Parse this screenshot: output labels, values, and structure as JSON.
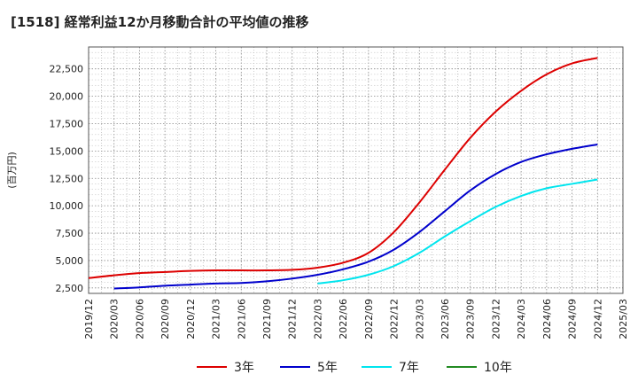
{
  "chart_data": {
    "type": "line",
    "title": "[1518]  経常利益12か月移動合計の平均値の推移",
    "ylabel": "(百万円)",
    "xlabel": "",
    "ylim": [
      2000,
      24500
    ],
    "yticks": [
      2500,
      5000,
      7500,
      10000,
      12500,
      15000,
      17500,
      20000,
      22500
    ],
    "ytick_labels": [
      "2,500",
      "5,000",
      "7,500",
      "10,000",
      "12,500",
      "15,000",
      "17,500",
      "20,000",
      "22,500"
    ],
    "xticks": [
      "2019/12",
      "2020/03",
      "2020/06",
      "2020/09",
      "2020/12",
      "2021/03",
      "2021/06",
      "2021/09",
      "2021/12",
      "2022/03",
      "2022/06",
      "2022/09",
      "2022/12",
      "2023/03",
      "2023/06",
      "2023/09",
      "2023/12",
      "2024/03",
      "2024/06",
      "2024/09",
      "2024/12",
      "2025/03"
    ],
    "grid": true,
    "legend_position": "bottom",
    "series": [
      {
        "name": "3年",
        "color": "#dd0000",
        "x": [
          "2019/12",
          "2020/03",
          "2020/06",
          "2020/09",
          "2020/12",
          "2021/03",
          "2021/06",
          "2021/09",
          "2021/12",
          "2022/03",
          "2022/06",
          "2022/09",
          "2022/12",
          "2023/03",
          "2023/06",
          "2023/09",
          "2023/12",
          "2024/03",
          "2024/06",
          "2024/09",
          "2024/12"
        ],
        "values": [
          3400,
          3650,
          3850,
          3950,
          4050,
          4100,
          4100,
          4100,
          4150,
          4350,
          4800,
          5700,
          7600,
          10300,
          13300,
          16200,
          18600,
          20500,
          22000,
          23000,
          23500
        ]
      },
      {
        "name": "5年",
        "color": "#0000cc",
        "x": [
          "2020/03",
          "2020/06",
          "2020/09",
          "2020/12",
          "2021/03",
          "2021/06",
          "2021/09",
          "2021/12",
          "2022/03",
          "2022/06",
          "2022/09",
          "2022/12",
          "2023/03",
          "2023/06",
          "2023/09",
          "2023/12",
          "2024/03",
          "2024/06",
          "2024/09",
          "2024/12"
        ],
        "values": [
          2450,
          2550,
          2700,
          2800,
          2900,
          2950,
          3100,
          3350,
          3700,
          4200,
          4900,
          6000,
          7600,
          9500,
          11400,
          12900,
          14000,
          14700,
          15200,
          15600
        ]
      },
      {
        "name": "7年",
        "color": "#00e5ee",
        "x": [
          "2022/03",
          "2022/06",
          "2022/09",
          "2022/12",
          "2023/03",
          "2023/06",
          "2023/09",
          "2023/12",
          "2024/03",
          "2024/06",
          "2024/09",
          "2024/12"
        ],
        "values": [
          2900,
          3200,
          3700,
          4500,
          5700,
          7200,
          8600,
          9900,
          10900,
          11600,
          12000,
          12400
        ]
      },
      {
        "name": "10年",
        "color": "#228b22",
        "x": [],
        "values": []
      }
    ]
  }
}
